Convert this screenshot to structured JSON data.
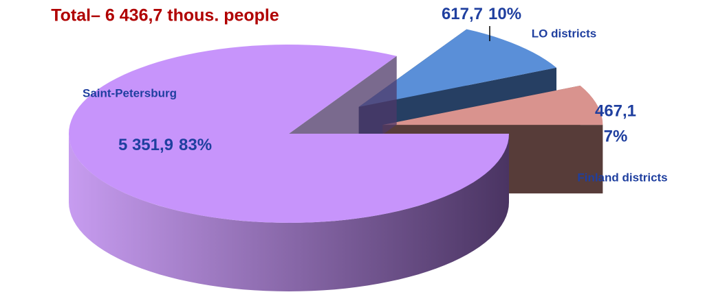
{
  "chart_data": {
    "type": "pie3d",
    "title": "Total– 6 436,7 thous. people",
    "categories": [
      "Saint-Petersburg",
      "LO districts",
      "Finland districts"
    ],
    "values": [
      5351.9,
      617.7,
      467.1
    ],
    "value_labels": [
      "5 351,9",
      "617,7",
      "467,1"
    ],
    "percents": [
      83,
      10,
      7
    ],
    "percent_labels": [
      "83%",
      "10%",
      "7%"
    ],
    "colors": [
      "#c794fb",
      "#5a8fd8",
      "#d9938e"
    ],
    "side_colors": [
      "#4e3868",
      "#263f63",
      "#573c39"
    ],
    "exploded": [
      false,
      true,
      true
    ]
  }
}
